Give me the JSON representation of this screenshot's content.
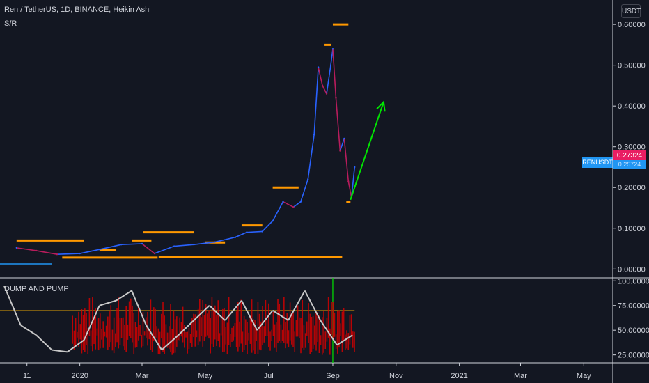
{
  "header": {
    "title": "Ren / TetherUS, 1D, BINANCE, Heikin Ashi",
    "indicator": "S/R"
  },
  "currency_button": "USDT",
  "last_price_label": "0.27324",
  "symbol_label": "RENUSDT",
  "symbol_value_label": "0.25724",
  "indicator_title": "DUMP AND PUMP",
  "colors": {
    "background": "#131722",
    "up": "#2962ff",
    "down": "#b71c5c",
    "sr": "#ff9800",
    "arrow": "#00e600",
    "oscillator": "#c8c8c8",
    "oscillator_fill": "#d50000",
    "upper_band": "#b8860b",
    "lower_band": "#2e7d32",
    "vline": "#00e600"
  },
  "chart_data": [
    {
      "type": "line",
      "title": "Ren / TetherUS, 1D, BINANCE, Heikin Ashi",
      "x_ticks": [
        "11",
        "2020",
        "Mar",
        "May",
        "Jul",
        "Sep",
        "Nov",
        "2021",
        "Mar",
        "May"
      ],
      "y_ticks": [
        "0.60000",
        "0.50000",
        "0.40000",
        "0.30000",
        "0.20000",
        "0.10000",
        "0.00000"
      ],
      "ylim": [
        -0.02,
        0.66
      ],
      "series": [
        {
          "x": [
            "2019-11-01",
            "2019-11-20",
            "2019-12-10",
            "2020-01-01",
            "2020-01-20",
            "2020-02-10",
            "2020-03-01",
            "2020-03-13",
            "2020-04-01",
            "2020-04-20",
            "2020-05-10",
            "2020-05-30",
            "2020-06-10",
            "2020-06-25",
            "2020-07-05",
            "2020-07-15",
            "2020-07-25",
            "2020-08-01",
            "2020-08-08",
            "2020-08-14",
            "2020-08-18",
            "2020-08-22",
            "2020-08-26",
            "2020-08-30",
            "2020-09-01",
            "2020-09-04",
            "2020-09-08",
            "2020-09-12",
            "2020-09-16",
            "2020-09-19",
            "2020-09-22"
          ],
          "values": [
            0.052,
            0.045,
            0.036,
            0.038,
            0.048,
            0.06,
            0.062,
            0.038,
            0.056,
            0.06,
            0.066,
            0.078,
            0.09,
            0.092,
            0.118,
            0.165,
            0.152,
            0.165,
            0.22,
            0.33,
            0.495,
            0.45,
            0.43,
            0.5,
            0.54,
            0.42,
            0.29,
            0.32,
            0.215,
            0.175,
            0.25
          ]
        }
      ],
      "support_resistance": [
        {
          "start": "2019-11-01",
          "end": "2020-01-05",
          "value": 0.07
        },
        {
          "start": "2019-12-15",
          "end": "2020-03-16",
          "value": 0.028
        },
        {
          "start": "2020-03-17",
          "end": "2020-09-10",
          "value": 0.03
        },
        {
          "start": "2020-03-02",
          "end": "2020-04-20",
          "value": 0.09
        },
        {
          "start": "2020-01-20",
          "end": "2020-02-05",
          "value": 0.047
        },
        {
          "start": "2020-02-20",
          "end": "2020-03-10",
          "value": 0.07
        },
        {
          "start": "2020-05-01",
          "end": "2020-05-20",
          "value": 0.065
        },
        {
          "start": "2020-06-05",
          "end": "2020-06-25",
          "value": 0.107
        },
        {
          "start": "2020-07-05",
          "end": "2020-07-30",
          "value": 0.2
        },
        {
          "start": "2020-08-24",
          "end": "2020-08-30",
          "value": 0.55
        },
        {
          "start": "2020-09-01",
          "end": "2020-09-16",
          "value": 0.6
        },
        {
          "start": "2020-09-14",
          "end": "2020-09-18",
          "value": 0.165
        }
      ],
      "arrow": {
        "from": {
          "x": "2020-09-18",
          "y": 0.17
        },
        "to": {
          "x": "2020-10-20",
          "y": 0.41
        }
      }
    },
    {
      "type": "line",
      "title": "DUMP AND PUMP",
      "y_ticks": [
        "100.000000",
        "75.000000",
        "50.000000",
        "25.000000"
      ],
      "ylim": [
        17,
        103
      ],
      "bands": [
        70,
        30
      ],
      "vline": "2020-09-01",
      "series": [
        {
          "x": [
            "2019-10-20",
            "2019-11-05",
            "2019-11-20",
            "2019-12-05",
            "2019-12-20",
            "2020-01-05",
            "2020-01-20",
            "2020-02-05",
            "2020-02-20",
            "2020-03-05",
            "2020-03-20",
            "2020-04-05",
            "2020-04-20",
            "2020-05-05",
            "2020-05-20",
            "2020-06-05",
            "2020-06-20",
            "2020-07-05",
            "2020-07-20",
            "2020-08-05",
            "2020-08-20",
            "2020-09-05",
            "2020-09-20"
          ],
          "values": [
            95,
            55,
            45,
            30,
            28,
            40,
            75,
            80,
            90,
            55,
            30,
            45,
            60,
            75,
            60,
            80,
            50,
            70,
            60,
            90,
            60,
            35,
            45
          ]
        }
      ]
    }
  ]
}
